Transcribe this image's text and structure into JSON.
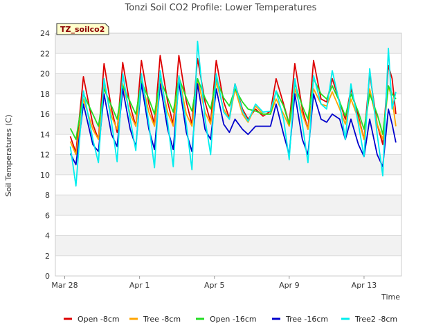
{
  "chart_data": {
    "type": "line",
    "title": "Tonzi Soil CO2 Profile: Lower Temperatures",
    "xlabel": "Time",
    "ylabel": "Soil Temperatures (C)",
    "station_label": "TZ_soilco2",
    "xlim": [
      "Mar 28",
      "Apr 16"
    ],
    "ylim": [
      0,
      24
    ],
    "x_ticks": [
      "Mar 28",
      "Apr 1",
      "Apr 5",
      "Apr 9",
      "Apr 13"
    ],
    "y_ticks": [
      "0",
      "2",
      "4",
      "6",
      "8",
      "10",
      "12",
      "14",
      "16",
      "18",
      "20",
      "22",
      "24"
    ],
    "grid": true,
    "legend_position": "bottom",
    "x_dates": [
      "Mar 28",
      "Mar 29",
      "Mar 30",
      "Mar 31",
      "Apr 1",
      "Apr 2",
      "Apr 3",
      "Apr 4",
      "Apr 5",
      "Apr 6",
      "Apr 7",
      "Apr 8",
      "Apr 9",
      "Apr 10",
      "Apr 11",
      "Apr 12",
      "Apr 13",
      "Apr 14",
      "Apr 15"
    ],
    "x_range_days": [
      -0.5,
      18.0
    ],
    "series": [
      {
        "name": "Open -8cm",
        "color": "#dd0000",
        "points": [
          [
            0.3,
            13.8
          ],
          [
            0.6,
            12.2
          ],
          [
            1.0,
            19.7
          ],
          [
            1.5,
            15.0
          ],
          [
            1.8,
            13.5
          ],
          [
            2.1,
            21.0
          ],
          [
            2.5,
            16.5
          ],
          [
            2.8,
            14.2
          ],
          [
            3.1,
            21.1
          ],
          [
            3.5,
            16.8
          ],
          [
            3.8,
            14.8
          ],
          [
            4.1,
            21.3
          ],
          [
            4.5,
            17.0
          ],
          [
            4.8,
            15.0
          ],
          [
            5.1,
            21.8
          ],
          [
            5.5,
            17.2
          ],
          [
            5.8,
            15.0
          ],
          [
            6.1,
            21.8
          ],
          [
            6.5,
            17.2
          ],
          [
            6.8,
            15.0
          ],
          [
            7.1,
            21.5
          ],
          [
            7.5,
            17.2
          ],
          [
            7.8,
            15.2
          ],
          [
            8.1,
            21.3
          ],
          [
            8.5,
            17.2
          ],
          [
            8.8,
            15.6
          ],
          [
            9.1,
            19.0
          ],
          [
            9.5,
            16.5
          ],
          [
            9.8,
            15.5
          ],
          [
            10.2,
            16.5
          ],
          [
            10.6,
            15.8
          ],
          [
            11.0,
            16.3
          ],
          [
            11.3,
            19.5
          ],
          [
            11.7,
            17.0
          ],
          [
            12.0,
            15.0
          ],
          [
            12.3,
            21.0
          ],
          [
            12.7,
            16.5
          ],
          [
            13.0,
            14.5
          ],
          [
            13.3,
            21.3
          ],
          [
            13.7,
            17.5
          ],
          [
            14.0,
            17.2
          ],
          [
            14.3,
            19.5
          ],
          [
            14.7,
            17.2
          ],
          [
            15.0,
            15.5
          ],
          [
            15.3,
            18.5
          ],
          [
            15.7,
            15.8
          ],
          [
            16.0,
            13.5
          ],
          [
            16.3,
            20.0
          ],
          [
            16.7,
            15.0
          ],
          [
            17.0,
            13.0
          ],
          [
            17.3,
            20.8
          ],
          [
            17.5,
            19.5
          ],
          [
            17.7,
            16.0
          ]
        ]
      },
      {
        "name": "Tree -8cm",
        "color": "#ffa500",
        "points": [
          [
            0.3,
            13.3
          ],
          [
            0.6,
            12.0
          ],
          [
            1.0,
            17.5
          ],
          [
            1.5,
            14.5
          ],
          [
            1.8,
            13.5
          ],
          [
            2.1,
            19.0
          ],
          [
            2.5,
            15.8
          ],
          [
            2.8,
            14.5
          ],
          [
            3.1,
            19.0
          ],
          [
            3.5,
            16.0
          ],
          [
            3.8,
            14.8
          ],
          [
            4.1,
            19.5
          ],
          [
            4.5,
            16.2
          ],
          [
            4.8,
            14.8
          ],
          [
            5.1,
            19.5
          ],
          [
            5.5,
            16.2
          ],
          [
            5.8,
            14.8
          ],
          [
            6.1,
            19.8
          ],
          [
            6.5,
            16.0
          ],
          [
            6.8,
            14.8
          ],
          [
            7.1,
            19.5
          ],
          [
            7.5,
            16.2
          ],
          [
            7.8,
            15.0
          ],
          [
            8.1,
            19.2
          ],
          [
            8.5,
            16.5
          ],
          [
            8.8,
            15.5
          ],
          [
            9.1,
            18.5
          ],
          [
            9.5,
            16.0
          ],
          [
            9.8,
            15.2
          ],
          [
            10.2,
            16.8
          ],
          [
            10.6,
            16.0
          ],
          [
            11.0,
            16.0
          ],
          [
            11.3,
            17.5
          ],
          [
            11.7,
            16.0
          ],
          [
            12.0,
            14.8
          ],
          [
            12.3,
            18.5
          ],
          [
            12.7,
            16.0
          ],
          [
            13.0,
            14.5
          ],
          [
            13.3,
            18.5
          ],
          [
            13.7,
            17.0
          ],
          [
            14.0,
            16.8
          ],
          [
            14.3,
            18.2
          ],
          [
            14.7,
            16.5
          ],
          [
            15.0,
            15.0
          ],
          [
            15.3,
            17.5
          ],
          [
            15.7,
            15.5
          ],
          [
            16.0,
            13.5
          ],
          [
            16.3,
            18.5
          ],
          [
            16.7,
            15.0
          ],
          [
            17.0,
            13.5
          ],
          [
            17.3,
            18.8
          ],
          [
            17.5,
            17.5
          ],
          [
            17.7,
            14.8
          ]
        ]
      },
      {
        "name": "Open -16cm",
        "color": "#22dd22",
        "points": [
          [
            0.3,
            14.6
          ],
          [
            0.6,
            13.5
          ],
          [
            1.0,
            18.0
          ],
          [
            1.5,
            16.0
          ],
          [
            1.8,
            14.8
          ],
          [
            2.1,
            18.5
          ],
          [
            2.5,
            16.8
          ],
          [
            2.8,
            15.5
          ],
          [
            3.1,
            18.8
          ],
          [
            3.5,
            17.2
          ],
          [
            3.8,
            16.0
          ],
          [
            4.1,
            19.2
          ],
          [
            4.5,
            17.5
          ],
          [
            4.8,
            16.0
          ],
          [
            5.1,
            19.5
          ],
          [
            5.5,
            17.6
          ],
          [
            5.8,
            16.2
          ],
          [
            6.1,
            19.6
          ],
          [
            6.5,
            17.6
          ],
          [
            6.8,
            16.3
          ],
          [
            7.1,
            19.5
          ],
          [
            7.5,
            17.6
          ],
          [
            7.8,
            16.5
          ],
          [
            8.1,
            19.5
          ],
          [
            8.5,
            17.6
          ],
          [
            8.8,
            16.8
          ],
          [
            9.1,
            18.5
          ],
          [
            9.5,
            17.2
          ],
          [
            9.8,
            16.5
          ],
          [
            10.2,
            16.3
          ],
          [
            10.6,
            16.0
          ],
          [
            11.0,
            16.0
          ],
          [
            11.3,
            18.3
          ],
          [
            11.7,
            16.8
          ],
          [
            12.0,
            15.0
          ],
          [
            12.3,
            19.0
          ],
          [
            12.7,
            16.8
          ],
          [
            13.0,
            15.5
          ],
          [
            13.3,
            19.5
          ],
          [
            13.7,
            18.0
          ],
          [
            14.0,
            17.5
          ],
          [
            14.3,
            18.8
          ],
          [
            14.7,
            17.2
          ],
          [
            15.0,
            15.8
          ],
          [
            15.3,
            18.0
          ],
          [
            15.7,
            16.2
          ],
          [
            16.0,
            14.5
          ],
          [
            16.3,
            18.0
          ],
          [
            16.7,
            16.0
          ],
          [
            17.0,
            14.0
          ],
          [
            17.3,
            18.8
          ],
          [
            17.5,
            18.0
          ],
          [
            17.7,
            17.5
          ]
        ]
      },
      {
        "name": "Tree -16cm",
        "color": "#0000cc",
        "points": [
          [
            0.3,
            12.1
          ],
          [
            0.6,
            11.0
          ],
          [
            1.0,
            17.0
          ],
          [
            1.5,
            13.0
          ],
          [
            1.8,
            12.3
          ],
          [
            2.1,
            18.0
          ],
          [
            2.5,
            14.0
          ],
          [
            2.8,
            12.8
          ],
          [
            3.1,
            18.5
          ],
          [
            3.5,
            14.5
          ],
          [
            3.8,
            12.8
          ],
          [
            4.1,
            19.0
          ],
          [
            4.5,
            14.5
          ],
          [
            4.8,
            12.5
          ],
          [
            5.1,
            19.0
          ],
          [
            5.5,
            14.5
          ],
          [
            5.8,
            12.5
          ],
          [
            6.1,
            19.2
          ],
          [
            6.5,
            14.2
          ],
          [
            6.8,
            12.3
          ],
          [
            7.1,
            19.0
          ],
          [
            7.5,
            14.5
          ],
          [
            7.8,
            13.5
          ],
          [
            8.1,
            18.5
          ],
          [
            8.5,
            15.0
          ],
          [
            8.8,
            14.2
          ],
          [
            9.1,
            15.5
          ],
          [
            9.5,
            14.5
          ],
          [
            9.8,
            14.0
          ],
          [
            10.2,
            14.8
          ],
          [
            10.6,
            14.8
          ],
          [
            11.0,
            14.8
          ],
          [
            11.3,
            17.0
          ],
          [
            11.7,
            14.0
          ],
          [
            12.0,
            12.0
          ],
          [
            12.3,
            18.0
          ],
          [
            12.7,
            13.5
          ],
          [
            13.0,
            12.0
          ],
          [
            13.3,
            18.0
          ],
          [
            13.7,
            15.5
          ],
          [
            14.0,
            15.2
          ],
          [
            14.3,
            16.0
          ],
          [
            14.7,
            15.5
          ],
          [
            15.0,
            13.5
          ],
          [
            15.3,
            15.5
          ],
          [
            15.7,
            13.0
          ],
          [
            16.0,
            11.8
          ],
          [
            16.3,
            15.5
          ],
          [
            16.7,
            12.0
          ],
          [
            17.0,
            10.8
          ],
          [
            17.3,
            16.5
          ],
          [
            17.5,
            15.0
          ],
          [
            17.7,
            13.2
          ]
        ]
      },
      {
        "name": "Tree2 -8cm",
        "color": "#00eeee",
        "points": [
          [
            0.3,
            12.8
          ],
          [
            0.6,
            8.9
          ],
          [
            1.0,
            18.3
          ],
          [
            1.5,
            13.5
          ],
          [
            1.8,
            11.2
          ],
          [
            2.1,
            19.5
          ],
          [
            2.5,
            15.2
          ],
          [
            2.8,
            11.3
          ],
          [
            3.1,
            20.0
          ],
          [
            3.5,
            15.5
          ],
          [
            3.8,
            12.4
          ],
          [
            4.1,
            20.0
          ],
          [
            4.5,
            15.0
          ],
          [
            4.8,
            10.7
          ],
          [
            5.1,
            20.3
          ],
          [
            5.5,
            15.2
          ],
          [
            5.8,
            10.8
          ],
          [
            6.1,
            19.8
          ],
          [
            6.5,
            15.0
          ],
          [
            6.8,
            10.5
          ],
          [
            7.1,
            23.2
          ],
          [
            7.5,
            15.5
          ],
          [
            7.8,
            12.0
          ],
          [
            8.1,
            20.0
          ],
          [
            8.5,
            16.2
          ],
          [
            8.8,
            15.5
          ],
          [
            9.1,
            19.0
          ],
          [
            9.5,
            16.3
          ],
          [
            9.8,
            15.3
          ],
          [
            10.2,
            17.0
          ],
          [
            10.6,
            16.2
          ],
          [
            11.0,
            16.3
          ],
          [
            11.3,
            18.3
          ],
          [
            11.7,
            15.5
          ],
          [
            12.0,
            11.5
          ],
          [
            12.3,
            19.5
          ],
          [
            12.7,
            15.0
          ],
          [
            13.0,
            11.2
          ],
          [
            13.3,
            19.8
          ],
          [
            13.7,
            17.0
          ],
          [
            14.0,
            16.5
          ],
          [
            14.3,
            20.3
          ],
          [
            14.7,
            17.0
          ],
          [
            15.0,
            13.5
          ],
          [
            15.3,
            19.0
          ],
          [
            15.7,
            15.0
          ],
          [
            16.0,
            11.8
          ],
          [
            16.3,
            20.5
          ],
          [
            16.7,
            14.0
          ],
          [
            17.0,
            9.9
          ],
          [
            17.3,
            22.5
          ],
          [
            17.5,
            16.5
          ],
          [
            17.7,
            18.2
          ]
        ]
      }
    ]
  }
}
